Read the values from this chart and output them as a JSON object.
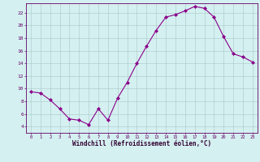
{
  "x": [
    0,
    1,
    2,
    3,
    4,
    5,
    6,
    7,
    8,
    9,
    10,
    11,
    12,
    13,
    14,
    15,
    16,
    17,
    18,
    19,
    20,
    21,
    22,
    23
  ],
  "y": [
    9.5,
    9.3,
    8.2,
    6.8,
    5.2,
    5.0,
    4.3,
    6.8,
    5.0,
    8.5,
    11.0,
    14.0,
    16.7,
    19.2,
    21.3,
    21.7,
    22.3,
    23.0,
    22.7,
    21.3,
    18.2,
    15.5,
    15.0,
    14.2
  ],
  "line_color": "#8B008B",
  "marker": "D",
  "marker_size": 2,
  "bg_color": "#d4f0f0",
  "grid_color": "#aac8c8",
  "xlabel": "Windchill (Refroidissement éolien,°C)",
  "xlim": [
    -0.5,
    23.5
  ],
  "ylim": [
    3.0,
    23.5
  ],
  "yticks": [
    4,
    6,
    8,
    10,
    12,
    14,
    16,
    18,
    20,
    22
  ],
  "xticks": [
    0,
    1,
    2,
    3,
    4,
    5,
    6,
    7,
    8,
    9,
    10,
    11,
    12,
    13,
    14,
    15,
    16,
    17,
    18,
    19,
    20,
    21,
    22,
    23
  ]
}
